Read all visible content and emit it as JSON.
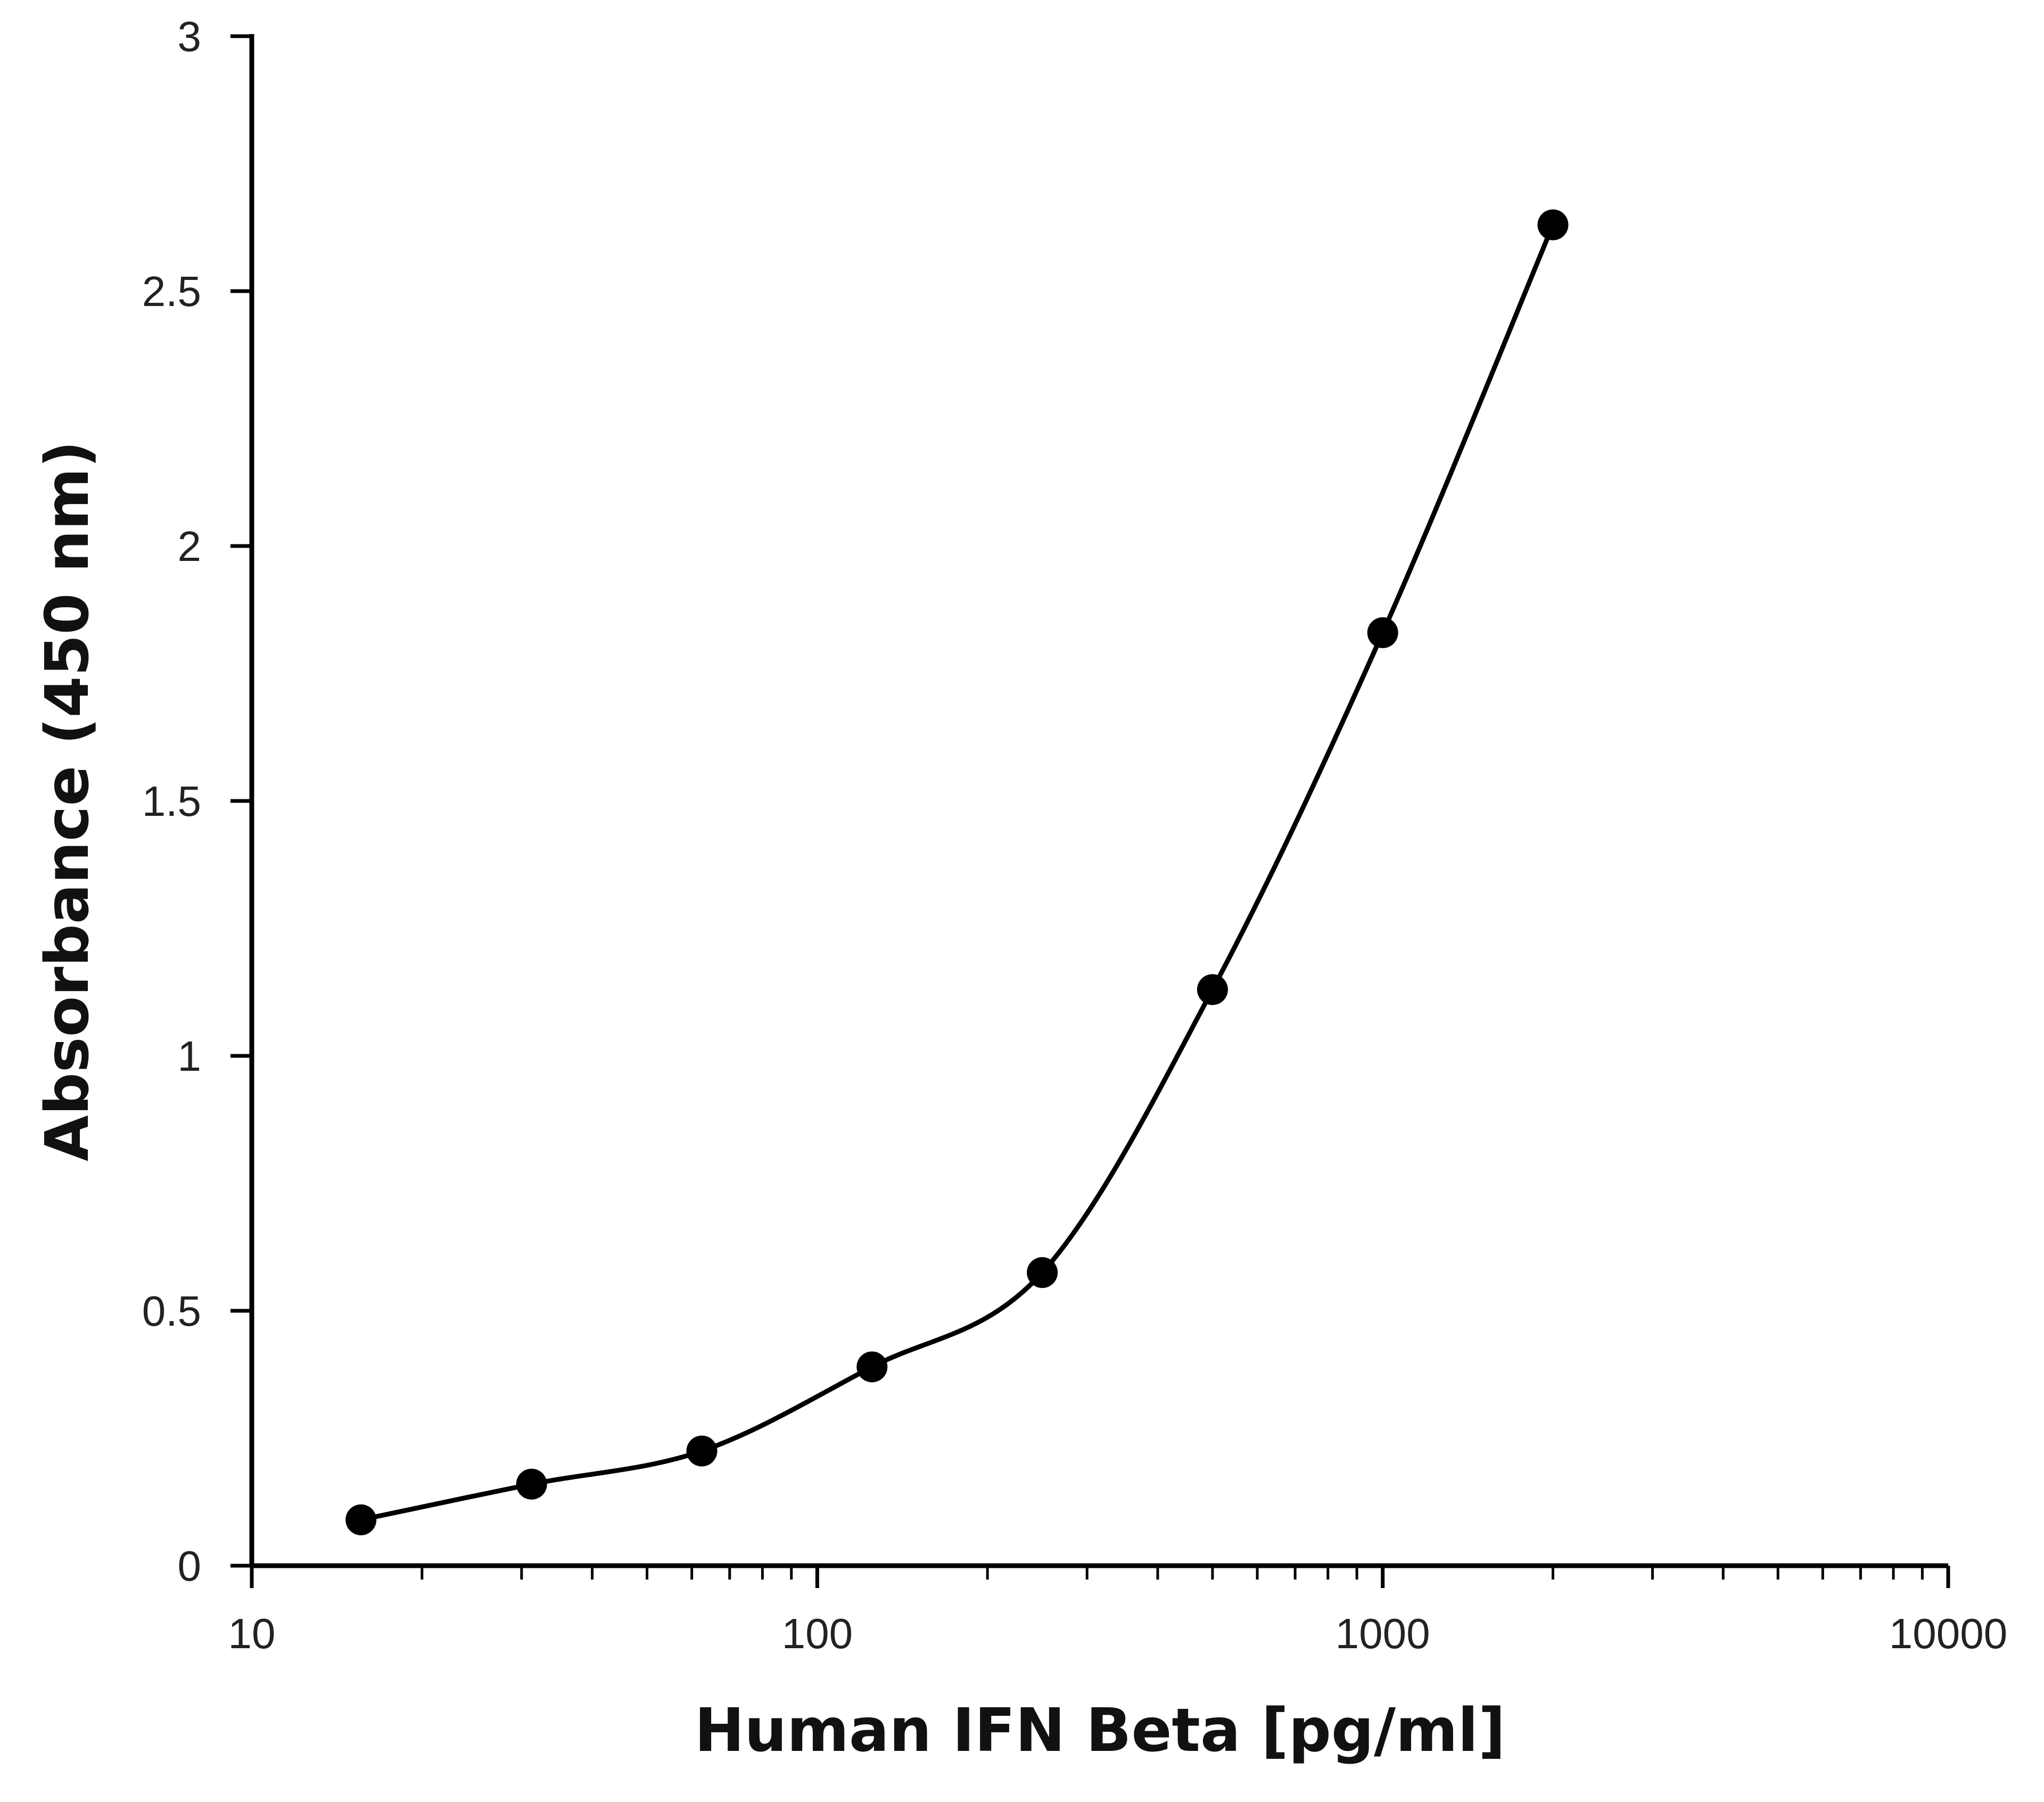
{
  "chart_data": {
    "type": "scatter",
    "title": "",
    "xlabel": "Human IFN Beta [pg/ml]",
    "ylabel": "Absorbance (450 nm)",
    "x_scale": "log",
    "xlim": [
      10,
      10000
    ],
    "ylim": [
      0,
      3
    ],
    "x_ticks": [
      10,
      100,
      1000,
      10000
    ],
    "x_tick_labels": [
      "10",
      "100",
      "1000",
      "10000"
    ],
    "y_ticks": [
      0,
      0.5,
      1,
      1.5,
      2,
      2.5,
      3
    ],
    "y_tick_labels": [
      "0",
      "0.5",
      "1",
      "1.5",
      "2",
      "2.5",
      "3"
    ],
    "grid": false,
    "line_style": "smooth line with markers",
    "colors": {
      "series": "#000000",
      "axes": "#000000"
    },
    "series": [
      {
        "x": [
          15.6,
          31.25,
          62.5,
          125,
          250,
          500,
          1000,
          2000
        ],
        "y": [
          0.09,
          0.16,
          0.225,
          0.39,
          0.575,
          1.13,
          1.83,
          2.63
        ]
      }
    ]
  }
}
